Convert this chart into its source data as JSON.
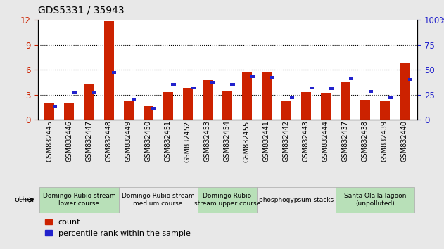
{
  "title": "GDS5331 / 35943",
  "samples": [
    "GSM832445",
    "GSM832446",
    "GSM832447",
    "GSM832448",
    "GSM832449",
    "GSM832450",
    "GSM832451",
    "GSM832452",
    "GSM832453",
    "GSM832454",
    "GSM832455",
    "GSM832441",
    "GSM832442",
    "GSM832443",
    "GSM832444",
    "GSM832437",
    "GSM832438",
    "GSM832439",
    "GSM832440"
  ],
  "count_values": [
    2.0,
    2.0,
    4.2,
    11.9,
    2.2,
    1.6,
    3.3,
    3.8,
    4.7,
    3.4,
    5.7,
    5.7,
    2.3,
    3.3,
    3.2,
    4.5,
    2.4,
    2.3,
    6.8
  ],
  "percentile_values": [
    13,
    27,
    27,
    47,
    20,
    11,
    35,
    32,
    37,
    35,
    43,
    42,
    22,
    32,
    31,
    41,
    28,
    22,
    40
  ],
  "groups": [
    {
      "label": "Domingo Rubio stream\nlower course",
      "start": 0,
      "end": 4,
      "color": "#b8e0b8"
    },
    {
      "label": "Domingo Rubio stream\nmedium course",
      "start": 4,
      "end": 8,
      "color": "#e8e8e8"
    },
    {
      "label": "Domingo Rubio\nstream upper course",
      "start": 8,
      "end": 11,
      "color": "#b8e0b8"
    },
    {
      "label": "phosphogypsum stacks",
      "start": 11,
      "end": 15,
      "color": "#e8e8e8"
    },
    {
      "label": "Santa Olalla lagoon\n(unpolluted)",
      "start": 15,
      "end": 19,
      "color": "#b8e0b8"
    }
  ],
  "bar_color": "#cc2200",
  "pct_color": "#2222cc",
  "ylim_left": [
    0,
    12
  ],
  "ylim_right": [
    0,
    100
  ],
  "yticks_left": [
    0,
    3,
    6,
    9,
    12
  ],
  "yticks_right": [
    0,
    25,
    50,
    75,
    100
  ],
  "grid_values": [
    3,
    6,
    9
  ],
  "bar_width": 0.5,
  "pct_marker_size": 5,
  "group_label_fontsize": 6.5,
  "title_fontsize": 10,
  "tick_label_fontsize": 7,
  "legend_fontsize": 8,
  "other_label": "other",
  "background_color": "#e8e8e8",
  "plot_background": "#ffffff",
  "right_axis_label": "100%"
}
